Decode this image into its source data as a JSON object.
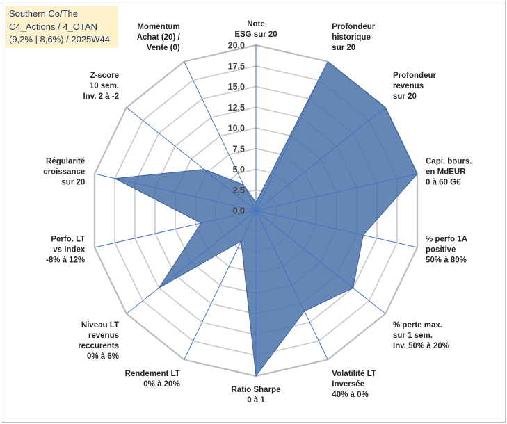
{
  "chart_data": {
    "type": "radar",
    "title": [
      "Southern Co/The",
      "C4_Actions / 4_OTAN",
      "(9,2% | 8,6%) / 2025W44"
    ],
    "rmin": 0,
    "rmax": 20,
    "tick_labels": [
      "0,0",
      "2,5",
      "5,0",
      "7,5",
      "10,0",
      "12,5",
      "15,0",
      "17,5",
      "20,0"
    ],
    "axes": [
      {
        "label": [
          "Note",
          "ESG sur 20"
        ],
        "value": 1.0
      },
      {
        "label": [
          "Profondeur",
          "historique",
          "sur 20"
        ],
        "value": 20.0
      },
      {
        "label": [
          "Profondeur",
          "revenus",
          "sur 20"
        ],
        "value": 20.0
      },
      {
        "label": [
          "Capi. bours.",
          "en MdEUR",
          "0 à 60 G€"
        ],
        "value": 20.0
      },
      {
        "label": [
          "% perfo 1A",
          "positive",
          "50% à 80%"
        ],
        "value": 13.3
      },
      {
        "label": [
          "% perte max.",
          "sur 1 sem.",
          "Inv. 50% à 20%"
        ],
        "value": 15.0
      },
      {
        "label": [
          "Volatilité LT",
          "Inversée",
          "40% à 0%"
        ],
        "value": 13.5
      },
      {
        "label": [
          "Ratio Sharpe",
          "0 à 1"
        ],
        "value": 20.0
      },
      {
        "label": [
          "Rendement LT",
          "0% à 20%"
        ],
        "value": 4.1
      },
      {
        "label": [
          "Niveau LT",
          "revenus",
          "reccurents",
          "0% à 6%"
        ],
        "value": 15.0
      },
      {
        "label": [
          "Perfo. LT",
          "vs Index",
          "-8% à 12%"
        ],
        "value": 6.8
      },
      {
        "label": [
          "Régularité",
          "croissance",
          "sur 20"
        ],
        "value": 17.5
      },
      {
        "label": [
          "Z-score",
          "10 sem.",
          "Inv. 2 à -2"
        ],
        "value": 8.0
      },
      {
        "label": [
          "Momentum",
          "Achat (20) /",
          "Vente (0)"
        ],
        "value": 3.5
      }
    ],
    "series": [
      {
        "name": "Southern Co/The",
        "color": "#4a72a8"
      }
    ],
    "grid": true
  }
}
